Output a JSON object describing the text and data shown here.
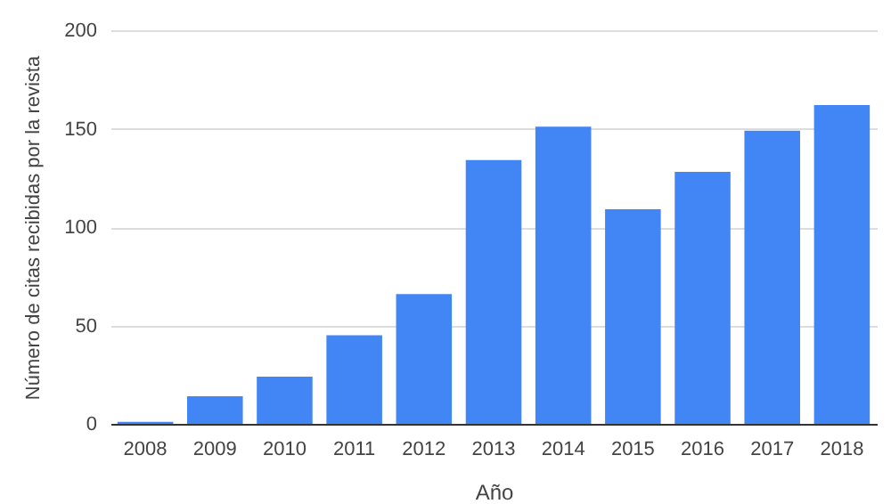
{
  "chart_data": {
    "type": "bar",
    "xlabel": "Año",
    "ylabel": "Número de citas recibidas por la revista",
    "categories": [
      "2008",
      "2009",
      "2010",
      "2011",
      "2012",
      "2013",
      "2014",
      "2015",
      "2016",
      "2017",
      "2018"
    ],
    "values": [
      1,
      14,
      24,
      45,
      66,
      134,
      151,
      109,
      128,
      149,
      162
    ],
    "color": "#4285f4",
    "ylim": [
      0,
      200
    ],
    "yticks": [
      0,
      50,
      100,
      150,
      200
    ],
    "grid": "y"
  }
}
